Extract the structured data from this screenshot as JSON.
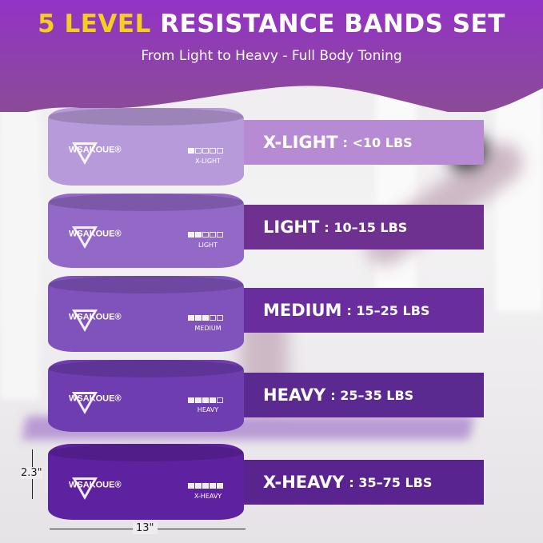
{
  "header": {
    "title_highlight": "5 LEVEL",
    "title_rest": "RESISTANCE BANDS SET",
    "subtitle": "From Light to Heavy - Full Body Toning",
    "colors": {
      "banner": "#9035c2",
      "highlight": "#f5cf1d"
    }
  },
  "brand": "WSAKOUE®",
  "bands": [
    {
      "level": "X-LIGHT",
      "name": "X-LIGHT",
      "resistance": ": <10 LBS",
      "meter_filled": 1,
      "band_color": "#b79ad9",
      "bar_color": "#b78bd4"
    },
    {
      "level": "LIGHT",
      "name": "LIGHT",
      "resistance": ": 10–15 LBS",
      "meter_filled": 2,
      "band_color": "#9269c6",
      "bar_color": "#6e3190"
    },
    {
      "level": "MEDIUM",
      "name": "MEDIUM",
      "resistance": ": 15–25 LBS",
      "meter_filled": 3,
      "band_color": "#8053bc",
      "bar_color": "#6a2d9d"
    },
    {
      "level": "HEAVY",
      "name": "HEAVY",
      "resistance": ": 25–35 LBS",
      "meter_filled": 4,
      "band_color": "#6e3eb1",
      "bar_color": "#5b2a91"
    },
    {
      "level": "X-HEAVY",
      "name": "X-HEAVY",
      "resistance": ": 35–75 LBS",
      "meter_filled": 5,
      "band_color": "#5e22a1",
      "bar_color": "#5a2490"
    }
  ],
  "dimensions": {
    "height": "2.3\"",
    "width": "13\""
  }
}
